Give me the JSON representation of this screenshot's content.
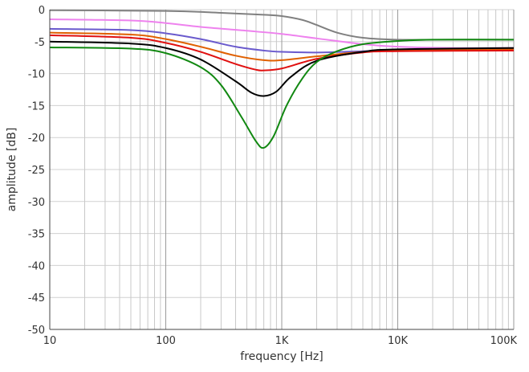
{
  "chart_data": {
    "type": "line",
    "xlabel": "frequency [Hz]",
    "ylabel": "amplitude [dB]",
    "x_scale": "log",
    "xlim": [
      10,
      100000
    ],
    "ylim": [
      -50,
      0
    ],
    "grid": true,
    "x_ticks": [
      {
        "value": 10,
        "label": "10"
      },
      {
        "value": 100,
        "label": "100"
      },
      {
        "value": 1000,
        "label": "1K"
      },
      {
        "value": 10000,
        "label": "10K"
      },
      {
        "value": 100000,
        "label": "100K"
      }
    ],
    "y_ticks": [
      0,
      -5,
      -10,
      -15,
      -20,
      -25,
      -30,
      -35,
      -40,
      -45,
      -50
    ],
    "series": [
      {
        "color": "#808080",
        "x": [
          10,
          100,
          300,
          700,
          1000,
          1500,
          2000,
          3000,
          5000,
          10000,
          30000,
          100000
        ],
        "y": [
          -0.1,
          -0.2,
          -0.5,
          -0.8,
          -1.0,
          -1.6,
          -2.4,
          -3.6,
          -4.4,
          -4.7,
          -4.7,
          -4.7
        ]
      },
      {
        "color": "#ee82ee",
        "x": [
          10,
          50,
          100,
          200,
          500,
          1000,
          2000,
          5000,
          10000,
          30000,
          100000
        ],
        "y": [
          -1.5,
          -1.7,
          -2.1,
          -2.7,
          -3.3,
          -3.8,
          -4.5,
          -5.4,
          -5.8,
          -6.0,
          -6.0
        ]
      },
      {
        "color": "#6a5acd",
        "x": [
          10,
          50,
          100,
          200,
          400,
          700,
          1000,
          2000,
          5000,
          10000,
          100000
        ],
        "y": [
          -3.0,
          -3.2,
          -3.7,
          -4.6,
          -5.8,
          -6.4,
          -6.6,
          -6.7,
          -6.5,
          -6.3,
          -6.3
        ]
      },
      {
        "color": "#e06000",
        "x": [
          10,
          50,
          100,
          200,
          400,
          700,
          1000,
          2000,
          5000,
          10000,
          100000
        ],
        "y": [
          -3.6,
          -3.9,
          -4.6,
          -5.8,
          -7.2,
          -7.9,
          -7.9,
          -7.3,
          -6.6,
          -6.3,
          -6.2
        ]
      },
      {
        "color": "#e01010",
        "x": [
          10,
          50,
          100,
          200,
          400,
          600,
          700,
          1000,
          2000,
          5000,
          10000,
          100000
        ],
        "y": [
          -4.0,
          -4.4,
          -5.2,
          -6.6,
          -8.5,
          -9.4,
          -9.5,
          -9.2,
          -7.7,
          -6.7,
          -6.5,
          -6.4
        ]
      },
      {
        "color": "#000000",
        "x": [
          10,
          50,
          100,
          200,
          400,
          550,
          700,
          900,
          1200,
          2000,
          5000,
          10000,
          100000
        ],
        "y": [
          -5.0,
          -5.3,
          -6.0,
          -7.8,
          -11.2,
          -13.0,
          -13.5,
          -12.8,
          -10.5,
          -8.0,
          -6.6,
          -6.2,
          -6.0
        ]
      },
      {
        "color": "#118811",
        "x": [
          10,
          50,
          100,
          200,
          300,
          450,
          600,
          700,
          850,
          1100,
          1500,
          2000,
          3000,
          5000,
          10000,
          20000,
          100000
        ],
        "y": [
          -5.9,
          -6.1,
          -6.8,
          -9.0,
          -11.8,
          -16.8,
          -20.6,
          -21.6,
          -19.8,
          -15.0,
          -10.8,
          -8.2,
          -6.5,
          -5.4,
          -4.9,
          -4.7,
          -4.7
        ]
      }
    ]
  }
}
